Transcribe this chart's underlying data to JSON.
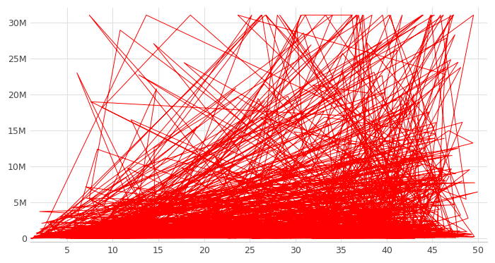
{
  "bg_color": "#ffffff",
  "line_color": "#ff0000",
  "line_width": 0.7,
  "xlim": [
    1,
    51
  ],
  "ylim": [
    -500000,
    32000000
  ],
  "xticks": [
    5,
    10,
    15,
    20,
    25,
    30,
    35,
    40,
    45,
    50
  ],
  "yticks": [
    0,
    5000000,
    10000000,
    15000000,
    20000000,
    25000000,
    30000000
  ],
  "ytick_labels": [
    "0",
    "5M",
    "10M",
    "15M",
    "20M",
    "25M",
    "30M"
  ],
  "grid_color": "#e0e0e0",
  "tick_color": "#444444",
  "n_points": 1000,
  "seed": 7
}
